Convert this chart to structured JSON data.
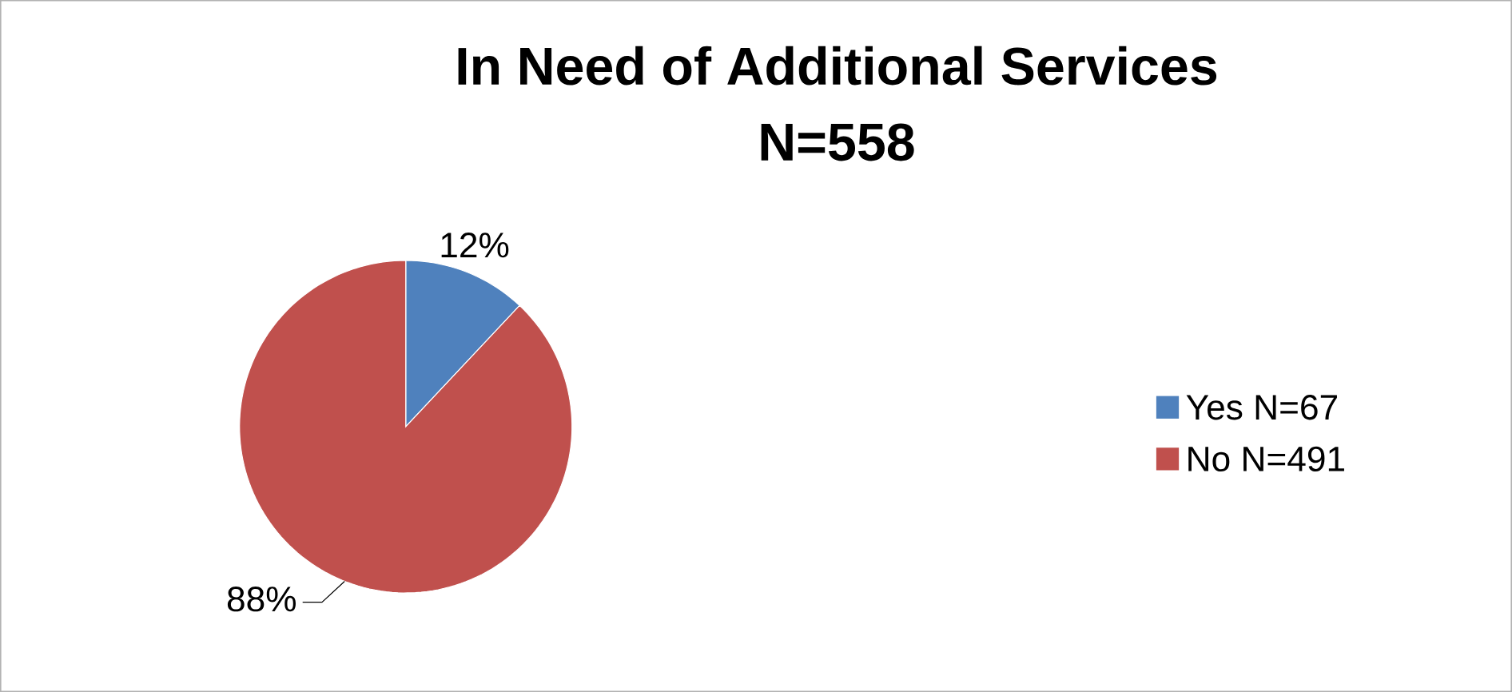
{
  "chart_data": {
    "type": "pie",
    "title": "In Need of Additional Services",
    "subtitle": "N=558",
    "categories": [
      "Yes N=67",
      "No N=491"
    ],
    "values": [
      12,
      88
    ],
    "colors": [
      "#4f81bd",
      "#c0504d"
    ],
    "value_labels": [
      "12%",
      "88%"
    ],
    "legend": "right"
  }
}
